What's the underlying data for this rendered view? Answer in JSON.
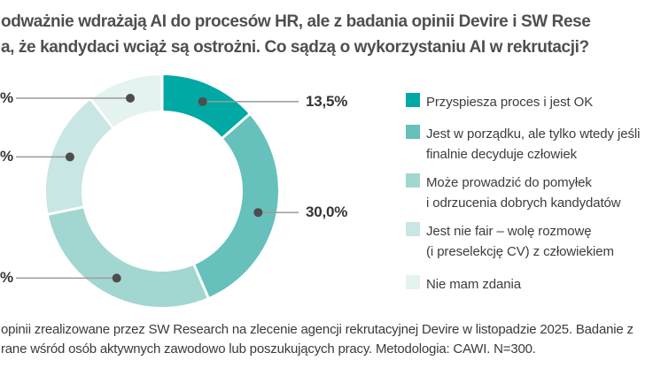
{
  "headline": {
    "line1": "odważnie wdrażają AI do procesów HR, ale z badania opinii Devire i SW Rese",
    "line2": "a, że kandydaci wciąż są ostrożni. Co sądzą o wykorzystaniu AI w rekrutacji?"
  },
  "chart_data": {
    "type": "donut",
    "start_angle_deg": 0,
    "direction": "clockwise",
    "inner_radius_ratio": 0.69,
    "legend_position": "right",
    "segments": [
      {
        "name": "Przyspiesza proces i jest OK",
        "value": 13.5,
        "value_label": "13,5%",
        "label_side": "right",
        "color": "#00a9a4",
        "value_estimated": false
      },
      {
        "name": "Jest w porządku, ale tylko wtedy jeśli finalnie decyduje człowiek",
        "value": 30.0,
        "value_label": "30,0%",
        "label_side": "right",
        "color": "#66c0bb",
        "value_estimated": false
      },
      {
        "name": "Może prowadzić do pomyłek i odrzucenia dobrych kandydatów",
        "value": 28.3,
        "value_label": "%",
        "label_side": "left",
        "color": "#a2d6d1",
        "value_estimated": true
      },
      {
        "name": "Jest nie fair – wolę rozmowę (i preselekcję CV) z człowiekiem",
        "value": 17.7,
        "value_label": "%",
        "label_side": "left",
        "color": "#c8e6e3",
        "value_estimated": true
      },
      {
        "name": "Nie mam zdania",
        "value": 10.5,
        "value_label": "%",
        "label_side": "left",
        "color": "#e4f2f0",
        "value_estimated": true
      }
    ],
    "leader_line_color": "#9b9b9b",
    "leader_dot_color": "#4d4d4d"
  },
  "legend": {
    "items": [
      {
        "color": "#00a9a4",
        "lines": [
          "Przyspiesza proces i jest OK"
        ]
      },
      {
        "color": "#66c0bb",
        "lines": [
          "Jest w porządku, ale tylko wtedy jeśli",
          "finalnie decyduje człowiek"
        ]
      },
      {
        "color": "#a2d6d1",
        "lines": [
          "Może prowadzić do pomyłek",
          "i odrzucenia dobrych kandydatów"
        ]
      },
      {
        "color": "#c8e6e3",
        "lines": [
          "Jest nie fair – wolę rozmowę",
          "(i preselekcję CV) z człowiekiem"
        ]
      },
      {
        "color": "#e4f2f0",
        "lines": [
          "Nie mam zdania"
        ]
      }
    ]
  },
  "footer": {
    "line1": "opinii zrealizowane przez SW Research na zlecenie agencji rekrutacyjnej Devire w listopadzie 2025. Badanie z",
    "line2": "rane wśród osób aktywnych zawodowo lub poszukujących pracy. Metodologia: CAWI. N=300."
  },
  "colors": {
    "background": "#ffffff",
    "headline_text": "#4f4f4f",
    "legend_text": "#3d3d3d",
    "footer_text": "#3a3a3a",
    "value_label_text": "#353535"
  }
}
